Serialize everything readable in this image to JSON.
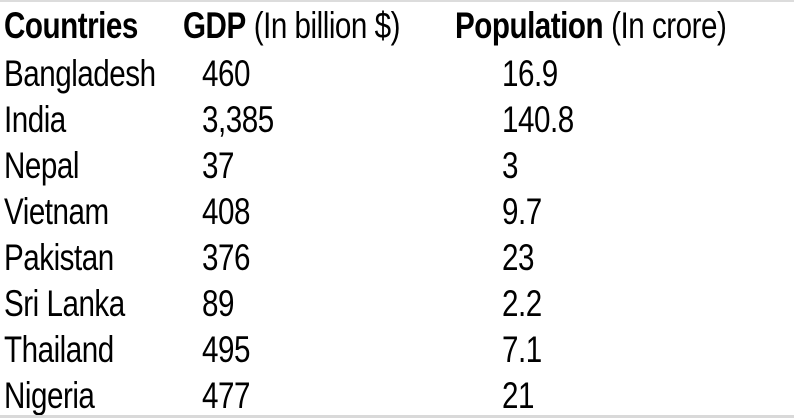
{
  "page": {
    "background": "#ffffff",
    "text_color": "#000000",
    "edge_line_color": "#d9d9d9"
  },
  "table": {
    "header": {
      "countries": {
        "label": "Countries",
        "sublabel": ""
      },
      "gdp": {
        "label": "GDP",
        "sublabel": "(In billion $)"
      },
      "population": {
        "label": "Population",
        "sublabel": "(In crore)"
      }
    },
    "rows": [
      {
        "country": "Bangladesh",
        "gdp": "460",
        "population": "16.9"
      },
      {
        "country": "India",
        "gdp": "3,385",
        "population": "140.8"
      },
      {
        "country": "Nepal",
        "gdp": "37",
        "population": "3"
      },
      {
        "country": "Vietnam",
        "gdp": "408",
        "population": "9.7"
      },
      {
        "country": "Pakistan",
        "gdp": "376",
        "population": "23"
      },
      {
        "country": "Sri Lanka",
        "gdp": "89",
        "population": "2.2"
      },
      {
        "country": "Thailand",
        "gdp": "495",
        "population": "7.1"
      },
      {
        "country": "Nigeria",
        "gdp": "477",
        "population": "21"
      }
    ]
  },
  "chart_data": {
    "type": "table",
    "title": "",
    "columns": [
      "Countries",
      "GDP (In billion $)",
      "Population (In crore)"
    ],
    "rows": [
      [
        "Bangladesh",
        460,
        16.9
      ],
      [
        "India",
        3385,
        140.8
      ],
      [
        "Nepal",
        37,
        3
      ],
      [
        "Vietnam",
        408,
        9.7
      ],
      [
        "Pakistan",
        376,
        23
      ],
      [
        "Sri Lanka",
        89,
        2.2
      ],
      [
        "Thailand",
        495,
        7.1
      ],
      [
        "Nigeria",
        477,
        21
      ]
    ],
    "gdp_unit": "billion $",
    "population_unit": "crore"
  }
}
